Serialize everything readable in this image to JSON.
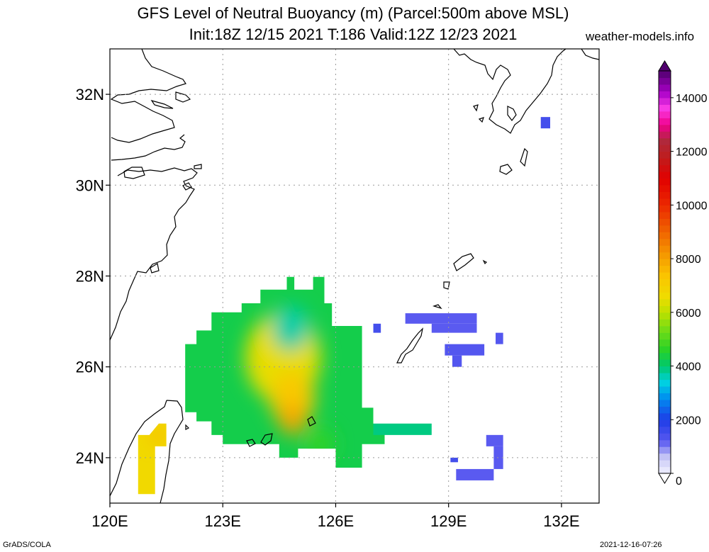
{
  "title": {
    "line1": "GFS Level of Neutral Buoyancy (m) (Parcel:500m above MSL)",
    "line2": "Init:18Z 12/15 2021 T:186 Valid:12Z 12/23 2021"
  },
  "site": "weather-models.info",
  "footer": {
    "left": "GrADS/COLA",
    "right": "2021-12-16-07:26"
  },
  "chart_data": {
    "type": "heatmap",
    "xlim": [
      120,
      133
    ],
    "ylim": [
      23,
      33
    ],
    "x_ticks": [
      {
        "v": 120,
        "label": "120E"
      },
      {
        "v": 123,
        "label": "123E"
      },
      {
        "v": 126,
        "label": "126E"
      },
      {
        "v": 129,
        "label": "129E"
      },
      {
        "v": 132,
        "label": "132E"
      }
    ],
    "y_ticks": [
      {
        "v": 24,
        "label": "24N"
      },
      {
        "v": 26,
        "label": "26N"
      },
      {
        "v": 28,
        "label": "28N"
      },
      {
        "v": 30,
        "label": "30N"
      },
      {
        "v": 32,
        "label": "32N"
      }
    ],
    "grid": true,
    "colorbar": {
      "min": 0,
      "max": 15000,
      "ticks": [
        {
          "v": 0,
          "label": "0"
        },
        {
          "v": 2000,
          "label": "2000"
        },
        {
          "v": 4000,
          "label": "4000"
        },
        {
          "v": 6000,
          "label": "6000"
        },
        {
          "v": 8000,
          "label": "8000"
        },
        {
          "v": 10000,
          "label": "10000"
        },
        {
          "v": 12000,
          "label": "12000"
        },
        {
          "v": 14000,
          "label": "14000"
        }
      ]
    },
    "regions": [
      {
        "name": "main-cluster",
        "polygon": [
          [
            122.7,
            27.2
          ],
          [
            123.5,
            27.2
          ],
          [
            123.5,
            27.4
          ],
          [
            124.0,
            27.4
          ],
          [
            124.0,
            27.7
          ],
          [
            124.7,
            27.7
          ],
          [
            124.7,
            27.98
          ],
          [
            124.9,
            27.98
          ],
          [
            124.9,
            27.7
          ],
          [
            125.4,
            27.7
          ],
          [
            125.4,
            27.98
          ],
          [
            125.7,
            27.98
          ],
          [
            125.7,
            27.4
          ],
          [
            125.9,
            27.4
          ],
          [
            125.9,
            26.9
          ],
          [
            126.7,
            26.9
          ],
          [
            126.7,
            25.1
          ],
          [
            127.0,
            25.1
          ],
          [
            127.0,
            24.7
          ],
          [
            127.3,
            24.7
          ],
          [
            127.3,
            24.3
          ],
          [
            126.7,
            24.3
          ],
          [
            126.7,
            23.78
          ],
          [
            126.0,
            23.78
          ],
          [
            126.0,
            24.2
          ],
          [
            125.0,
            24.2
          ],
          [
            125.0,
            24.0
          ],
          [
            124.5,
            24.0
          ],
          [
            124.5,
            24.3
          ],
          [
            123.0,
            24.3
          ],
          [
            123.0,
            24.5
          ],
          [
            122.7,
            24.5
          ],
          [
            122.7,
            24.8
          ],
          [
            122.3,
            24.8
          ],
          [
            122.3,
            25.0
          ],
          [
            122.0,
            25.0
          ],
          [
            122.0,
            26.5
          ],
          [
            122.3,
            26.5
          ],
          [
            122.3,
            26.8
          ],
          [
            122.7,
            26.8
          ]
        ],
        "value": 4300
      },
      {
        "name": "east-strip",
        "polygon": [
          [
            127.0,
            24.75
          ],
          [
            128.55,
            24.75
          ],
          [
            128.55,
            24.5
          ],
          [
            127.0,
            24.5
          ]
        ],
        "value": 3900
      },
      {
        "name": "taiwan-strip",
        "polygon": [
          [
            121.3,
            24.75
          ],
          [
            121.5,
            24.75
          ],
          [
            121.5,
            24.25
          ],
          [
            121.2,
            24.25
          ],
          [
            121.2,
            23.2
          ],
          [
            120.75,
            23.2
          ],
          [
            120.75,
            24.5
          ],
          [
            121.05,
            24.5
          ]
        ],
        "value": 6700
      }
    ],
    "blobs": [
      {
        "x": 124.6,
        "y": 26.2,
        "r": 1.0,
        "value": 6500
      },
      {
        "x": 124.85,
        "y": 25.3,
        "r": 0.6,
        "value": 7200
      },
      {
        "x": 124.85,
        "y": 24.85,
        "r": 0.35,
        "value": 7900
      },
      {
        "x": 124.8,
        "y": 26.85,
        "r": 0.5,
        "value": 3700
      },
      {
        "x": 125.6,
        "y": 24.3,
        "r": 0.35,
        "value": 4700
      },
      {
        "x": 121.3,
        "y": 24.5,
        "r": 0.2,
        "value": 7600
      }
    ],
    "blue_cells": [
      {
        "x0": 127.0,
        "x1": 127.2,
        "y0": 26.75,
        "y1": 26.95,
        "value": 1500
      },
      {
        "x0": 127.85,
        "x1": 129.75,
        "y0": 26.95,
        "y1": 27.18,
        "value": 1200
      },
      {
        "x0": 128.55,
        "x1": 129.75,
        "y0": 26.75,
        "y1": 26.95,
        "value": 1200
      },
      {
        "x0": 130.25,
        "x1": 130.45,
        "y0": 26.5,
        "y1": 26.75,
        "value": 1300
      },
      {
        "x0": 128.9,
        "x1": 129.95,
        "y0": 26.25,
        "y1": 26.5,
        "value": 1300
      },
      {
        "x0": 129.1,
        "x1": 129.35,
        "y0": 26.0,
        "y1": 26.25,
        "value": 1300
      },
      {
        "x0": 129.05,
        "x1": 129.25,
        "y0": 23.9,
        "y1": 24.0,
        "value": 1500
      },
      {
        "x0": 130.0,
        "x1": 130.45,
        "y0": 24.25,
        "y1": 24.5,
        "value": 1200
      },
      {
        "x0": 130.2,
        "x1": 130.45,
        "y0": 23.75,
        "y1": 24.25,
        "value": 1200
      },
      {
        "x0": 129.2,
        "x1": 130.2,
        "y0": 23.5,
        "y1": 23.75,
        "value": 1200
      },
      {
        "x0": 131.45,
        "x1": 131.7,
        "y0": 31.25,
        "y1": 31.5,
        "value": 1500
      }
    ]
  }
}
